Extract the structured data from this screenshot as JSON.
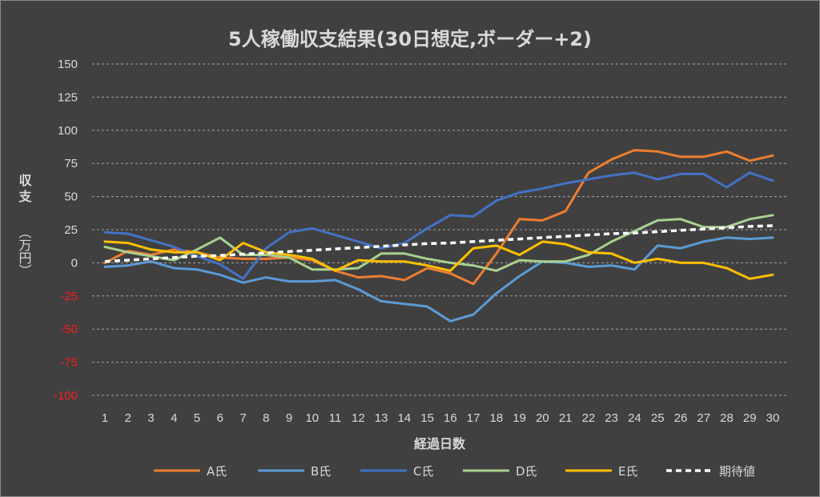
{
  "chart_data": {
    "type": "line",
    "title": "5人稼働収支結果(30日想定,ボーダー+2)",
    "xlabel": "経過日数",
    "ylabel_main": "収支",
    "ylabel_unit": "（万円）",
    "x": [
      1,
      2,
      3,
      4,
      5,
      6,
      7,
      8,
      9,
      10,
      11,
      12,
      13,
      14,
      15,
      16,
      17,
      18,
      19,
      20,
      21,
      22,
      23,
      24,
      25,
      26,
      27,
      28,
      29,
      30
    ],
    "yticks": [
      150,
      125,
      100,
      75,
      50,
      25,
      0,
      -25,
      -50,
      -75,
      -100
    ],
    "ylim": [
      -100,
      150
    ],
    "grid": true,
    "legend_position": "bottom",
    "negative_tick_color": "#ff1a1a",
    "series": [
      {
        "name": "A氏",
        "color": "#ed7d31",
        "dashed": false,
        "values": [
          0,
          9,
          6,
          10,
          8,
          4,
          3,
          3,
          4,
          2,
          -6,
          -11,
          -10,
          -13,
          -4,
          -8,
          -16,
          7,
          33,
          32,
          39,
          68,
          78,
          85,
          84,
          80,
          80,
          84,
          77,
          81
        ]
      },
      {
        "name": "B氏",
        "color": "#5b9bd5",
        "dashed": false,
        "values": [
          -3,
          -2,
          1,
          -4,
          -5,
          -9,
          -15,
          -11,
          -14,
          -14,
          -13,
          -20,
          -29,
          -31,
          -33,
          -44,
          -39,
          -23,
          -10,
          1,
          0,
          -3,
          -2,
          -5,
          13,
          11,
          16,
          19,
          18,
          19
        ]
      },
      {
        "name": "C氏",
        "color": "#4472c4",
        "dashed": false,
        "values": [
          23,
          22,
          17,
          12,
          5,
          -1,
          -12,
          11,
          23,
          26,
          21,
          16,
          11,
          15,
          26,
          36,
          35,
          47,
          53,
          56,
          60,
          63,
          66,
          68,
          63,
          67,
          67,
          57,
          68,
          62
        ]
      },
      {
        "name": "D氏",
        "color": "#a9d18e",
        "dashed": false,
        "values": [
          12,
          8,
          5,
          2,
          10,
          19,
          6,
          6,
          4,
          -5,
          -5,
          -4,
          7,
          7,
          3,
          0,
          -2,
          -6,
          2,
          1,
          1,
          6,
          16,
          24,
          32,
          33,
          27,
          27,
          33,
          36
        ]
      },
      {
        "name": "E氏",
        "color": "#ffc000",
        "dashed": false,
        "values": [
          16,
          15,
          10,
          8,
          8,
          2,
          15,
          8,
          6,
          3,
          -6,
          2,
          1,
          1,
          -2,
          -6,
          11,
          13,
          6,
          16,
          14,
          8,
          7,
          0,
          3,
          0,
          0,
          -4,
          -12,
          -9
        ]
      },
      {
        "name": "期待値",
        "color": "#ffffff",
        "dashed": true,
        "values": [
          1,
          2,
          3,
          4,
          5,
          5.5,
          6.5,
          7.5,
          8.5,
          9.5,
          10.5,
          11.5,
          12.5,
          13.5,
          14.5,
          15,
          16,
          17,
          18,
          19,
          20,
          21,
          22,
          22.5,
          23.5,
          24.5,
          25.5,
          26.5,
          27.5,
          28
        ]
      }
    ]
  }
}
